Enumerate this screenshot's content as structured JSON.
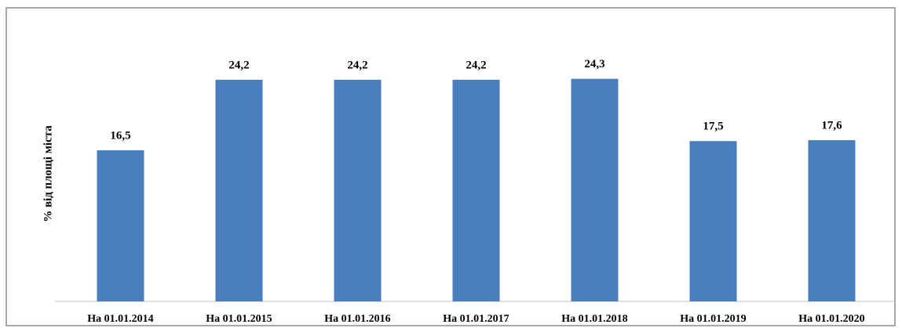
{
  "chart_data": {
    "type": "bar",
    "y_label": "% від площі міста",
    "categories": [
      "На 01.01.2014",
      "На 01.01.2015",
      "На 01.01.2016",
      "На 01.01.2017",
      "На 01.01.2018",
      "На 01.01.2019",
      "На 01.01.2020"
    ],
    "values": [
      16.5,
      24.2,
      24.2,
      24.2,
      24.3,
      17.5,
      17.6
    ],
    "value_labels": [
      "16,5",
      "24,2",
      "24,2",
      "24,2",
      "24,3",
      "17,5",
      "17,6"
    ],
    "color": "#4a7ebf",
    "ylim": [
      0,
      30
    ]
  }
}
